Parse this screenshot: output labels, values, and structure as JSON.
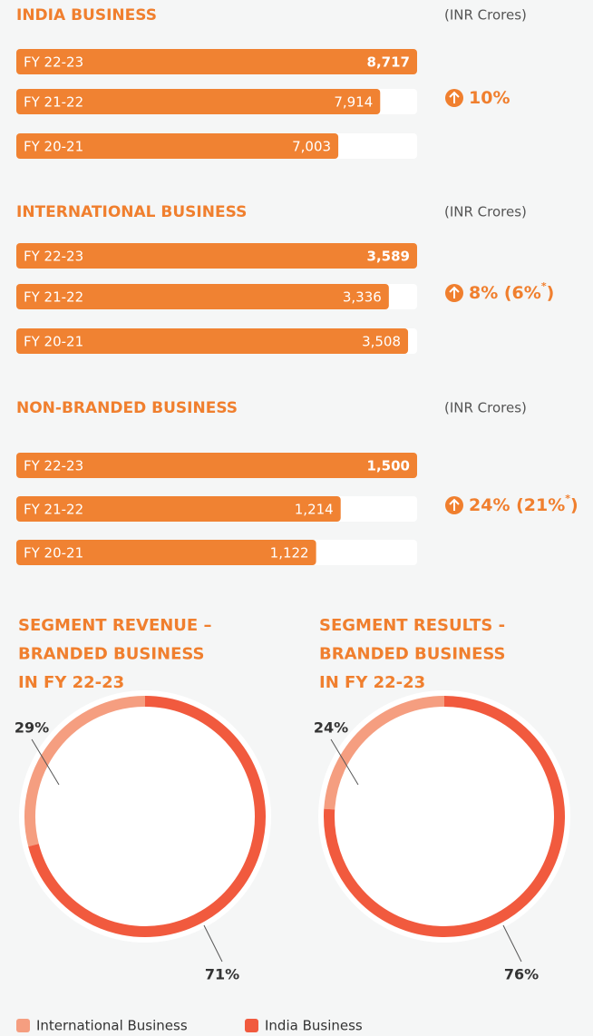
{
  "chart_data": [
    {
      "type": "bar",
      "orientation": "horizontal",
      "title": "INDIA BUSINESS",
      "unit": "(INR Crores)",
      "categories": [
        "FY 22-23",
        "FY 21-22",
        "FY 20-21"
      ],
      "values": [
        8717,
        7914,
        7003
      ],
      "value_labels": [
        "8,717",
        "7,914",
        "7,003"
      ],
      "xlim": [
        0,
        8717
      ],
      "color": "#f08232",
      "growth": [
        "10%"
      ]
    },
    {
      "type": "bar",
      "orientation": "horizontal",
      "title": "INTERNATIONAL BUSINESS",
      "unit": "(INR Crores)",
      "categories": [
        "FY 22-23",
        "FY 21-22",
        "FY 20-21"
      ],
      "values": [
        3589,
        3336,
        3508
      ],
      "value_labels": [
        "3,589",
        "3,336",
        "3,508"
      ],
      "xlim": [
        0,
        3589
      ],
      "color": "#f08232",
      "growth": [
        "8% (6%",
        "*",
        ")"
      ]
    },
    {
      "type": "bar",
      "orientation": "horizontal",
      "title": "NON-BRANDED BUSINESS",
      "unit": "(INR Crores)",
      "categories": [
        "FY 22-23",
        "FY 21-22",
        "FY 20-21"
      ],
      "values": [
        1500,
        1214,
        1122
      ],
      "value_labels": [
        "1,500",
        "1,214",
        "1,122"
      ],
      "xlim": [
        0,
        1500
      ],
      "color": "#f08232",
      "growth": [
        "24% (21%",
        "*",
        ")"
      ]
    },
    {
      "type": "pie",
      "donut": true,
      "title": [
        "SEGMENT REVENUE –",
        "BRANDED BUSINESS",
        "IN FY 22-23"
      ],
      "categories": [
        "International Business",
        "India Business"
      ],
      "values": [
        29,
        71
      ],
      "value_labels": [
        "29%",
        "71%"
      ],
      "colors": [
        "#f59e80",
        "#f15a3e"
      ],
      "legend": "bottom"
    },
    {
      "type": "pie",
      "donut": true,
      "title": [
        "SEGMENT RESULTS -",
        "BRANDED BUSINESS",
        "IN FY 22-23"
      ],
      "categories": [
        "International Business",
        "India Business"
      ],
      "values": [
        24,
        76
      ],
      "value_labels": [
        "24%",
        "76%"
      ],
      "colors": [
        "#f59e80",
        "#f15a3e"
      ]
    }
  ]
}
